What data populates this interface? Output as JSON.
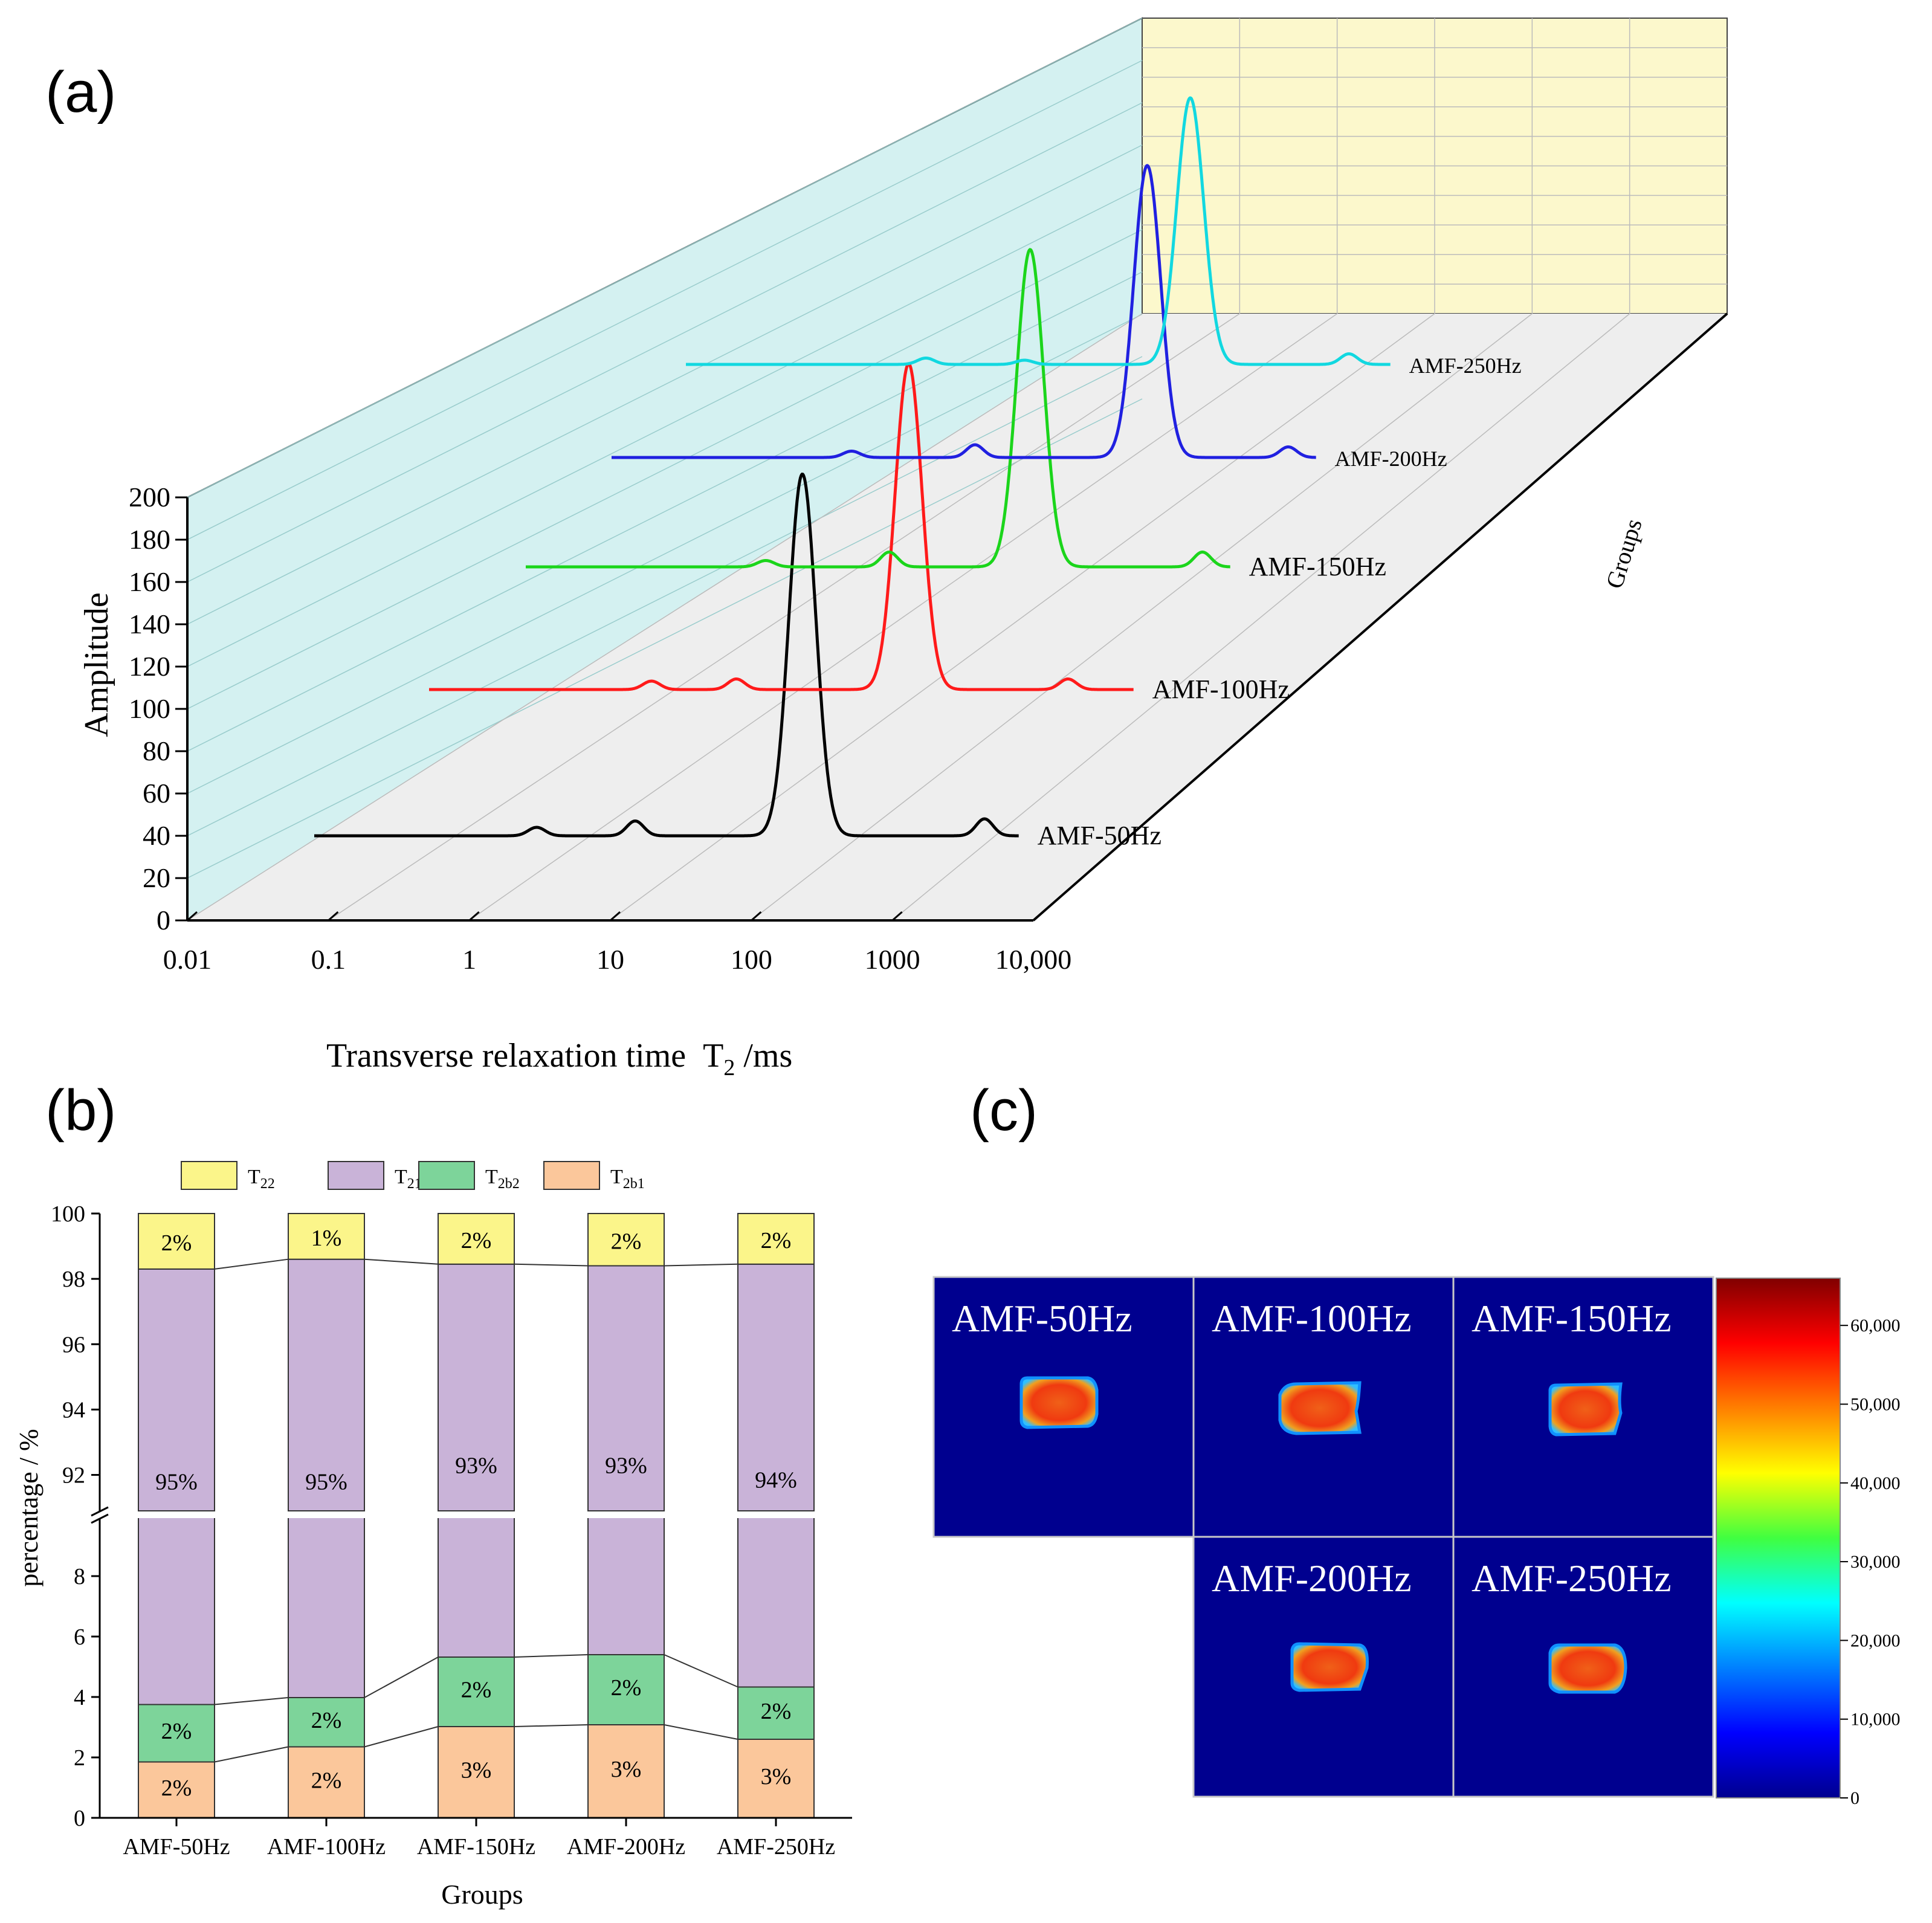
{
  "panels": {
    "a": "(a)",
    "b": "(b)",
    "c": "(c)"
  },
  "colors": {
    "AMF-50Hz": "#000000",
    "AMF-100Hz": "#ff1a1a",
    "AMF-150Hz": "#1bd51b",
    "AMF-200Hz": "#2020e0",
    "AMF-250Hz": "#12d8e0",
    "T22": "#fbf58a",
    "T21": "#c9b3d8",
    "T2b2": "#7dd49a",
    "T2b1": "#fbc79b",
    "side_wall": "#d4f1f1",
    "back_wall": "#fcf8cc",
    "floor": "#eeeeee"
  },
  "chart_data": [
    {
      "type": "line",
      "title": "",
      "xlabel": "Transverse relaxation time  T2 /ms",
      "ylabel": "Amplitude",
      "zlabel": "Groups",
      "x_scale": "log",
      "xlim": [
        0.01,
        10000
      ],
      "ylim": [
        0,
        200
      ],
      "x_ticks": [
        "0.01",
        "0.1",
        "1",
        "10",
        "100",
        "1000",
        "10,000"
      ],
      "y_ticks": [
        "0",
        "20",
        "40",
        "60",
        "80",
        "100",
        "120",
        "140",
        "160",
        "180",
        "200"
      ],
      "series": [
        {
          "name": "AMF-50Hz",
          "baseline": 40,
          "peaks": [
            {
              "t2": 3.0,
              "amp": 4
            },
            {
              "t2": 15.0,
              "amp": 7
            },
            {
              "t2": 230,
              "amp": 171
            },
            {
              "t2": 4500,
              "amp": 8
            }
          ]
        },
        {
          "name": "AMF-100Hz",
          "baseline": 110,
          "peaks": [
            {
              "t2": 3.0,
              "amp": 4
            },
            {
              "t2": 12.0,
              "amp": 5
            },
            {
              "t2": 200,
              "amp": 154
            },
            {
              "t2": 2700,
              "amp": 5
            }
          ]
        },
        {
          "name": "AMF-150Hz",
          "baseline": 170,
          "peaks": [
            {
              "t2": 4.0,
              "amp": 3
            },
            {
              "t2": 30.0,
              "amp": 7
            },
            {
              "t2": 300,
              "amp": 150
            },
            {
              "t2": 5000,
              "amp": 7
            }
          ]
        },
        {
          "name": "AMF-200Hz",
          "baseline": 222,
          "peaks": [
            {
              "t2": 4.0,
              "amp": 3
            },
            {
              "t2": 30.0,
              "amp": 6
            },
            {
              "t2": 500,
              "amp": 138
            },
            {
              "t2": 5000,
              "amp": 5
            }
          ]
        },
        {
          "name": "AMF-250Hz",
          "baseline": 267,
          "peaks": [
            {
              "t2": 4.0,
              "amp": 3
            },
            {
              "t2": 20.0,
              "amp": 2
            },
            {
              "t2": 300,
              "amp": 126
            },
            {
              "t2": 4000,
              "amp": 5
            }
          ]
        }
      ]
    },
    {
      "type": "bar",
      "stacked": true,
      "broken_axis": true,
      "title": "",
      "xlabel": "Groups",
      "ylabel": "percentage / %",
      "categories": [
        "AMF-50Hz",
        "AMF-100Hz",
        "AMF-150Hz",
        "AMF-200Hz",
        "AMF-250Hz"
      ],
      "y_ticks_lower": [
        "0",
        "2",
        "4",
        "6",
        "8"
      ],
      "y_ticks_upper": [
        "92",
        "94",
        "96",
        "98",
        "100"
      ],
      "legend_position": "top",
      "series": [
        {
          "name": "T2b1",
          "legend_main": "T",
          "legend_sub": "2b1",
          "cumulative_top": [
            1.85,
            2.35,
            3.02,
            3.08,
            2.6
          ],
          "labels": [
            "2%",
            "2%",
            "3%",
            "3%",
            "3%"
          ]
        },
        {
          "name": "T2b2",
          "legend_main": "T",
          "legend_sub": "2b2",
          "cumulative_top": [
            3.75,
            3.98,
            5.32,
            5.4,
            4.33
          ],
          "labels": [
            "2%",
            "2%",
            "2%",
            "2%",
            "2%"
          ]
        },
        {
          "name": "T21",
          "legend_main": "T",
          "legend_sub": "21",
          "cumulative_top": [
            98.3,
            98.6,
            98.45,
            98.4,
            98.45
          ],
          "labels": [
            "95%",
            "95%",
            "93%",
            "93%",
            "94%"
          ]
        },
        {
          "name": "T22",
          "legend_main": "T",
          "legend_sub": "22",
          "cumulative_top": [
            100,
            100,
            100,
            100,
            100
          ],
          "labels": [
            "2%",
            "1%",
            "2%",
            "2%",
            "2%"
          ]
        }
      ]
    }
  ],
  "mri": {
    "tiles": [
      {
        "label": "AMF-50Hz"
      },
      {
        "label": "AMF-100Hz"
      },
      {
        "label": "AMF-150Hz"
      },
      {
        "label": "AMF-200Hz"
      },
      {
        "label": "AMF-250Hz"
      }
    ],
    "colorbar_ticks": [
      "60,000",
      "50,000",
      "40,000",
      "30,000",
      "20,000",
      "10,000",
      "0"
    ],
    "colorbar_range": [
      0,
      66000
    ]
  }
}
